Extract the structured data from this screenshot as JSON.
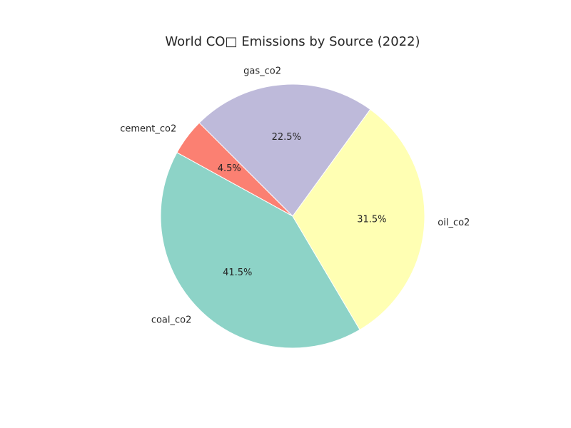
{
  "chart_data": {
    "type": "pie",
    "title": "World CO□ Emissions by Source (2022)",
    "start_angle_deg": 135,
    "direction": "counterclockwise",
    "slices": [
      {
        "label": "cement_co2",
        "value": 4.5,
        "pct_label": "4.5%",
        "color": "#fb8072"
      },
      {
        "label": "coal_co2",
        "value": 41.5,
        "pct_label": "41.5%",
        "color": "#8dd3c7"
      },
      {
        "label": "oil_co2",
        "value": 31.5,
        "pct_label": "31.5%",
        "color": "#ffffb3"
      },
      {
        "label": "gas_co2",
        "value": 22.5,
        "pct_label": "22.5%",
        "color": "#bebada"
      }
    ]
  }
}
